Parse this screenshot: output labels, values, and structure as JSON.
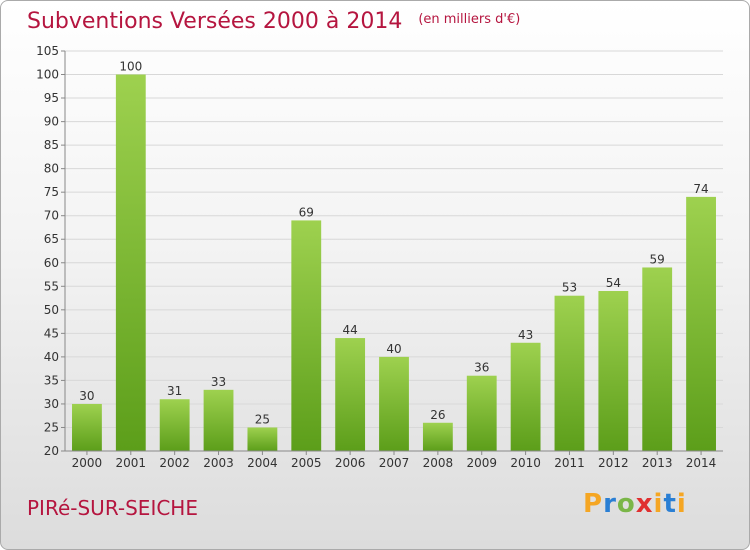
{
  "header": {
    "title": "Subventions Versées 2000 à 2014",
    "unit_note": "(en milliers d'€)"
  },
  "footer": {
    "city": "PIRé-SUR-SEICHE",
    "logo_text": "Proxiti"
  },
  "colors": {
    "title": "#b5153f",
    "bar_light": "#9ed14f",
    "bar_dark": "#5c9e1a",
    "grid": "#d8d8d8",
    "axis": "#888888"
  },
  "chart_data": {
    "type": "bar",
    "title": "Subventions Versées 2000 à 2014",
    "subtitle": "(en milliers d'€)",
    "xlabel": "",
    "ylabel": "",
    "categories": [
      "2000",
      "2001",
      "2002",
      "2003",
      "2004",
      "2005",
      "2006",
      "2007",
      "2008",
      "2009",
      "2010",
      "2011",
      "2012",
      "2013",
      "2014"
    ],
    "values": [
      30,
      100,
      31,
      33,
      25,
      69,
      44,
      40,
      26,
      36,
      43,
      53,
      54,
      59,
      74
    ],
    "ylim": [
      20,
      105
    ],
    "yticks": [
      20,
      25,
      30,
      35,
      40,
      45,
      50,
      55,
      60,
      65,
      70,
      75,
      80,
      85,
      90,
      95,
      100,
      105
    ],
    "grid": true,
    "data_labels": true
  }
}
